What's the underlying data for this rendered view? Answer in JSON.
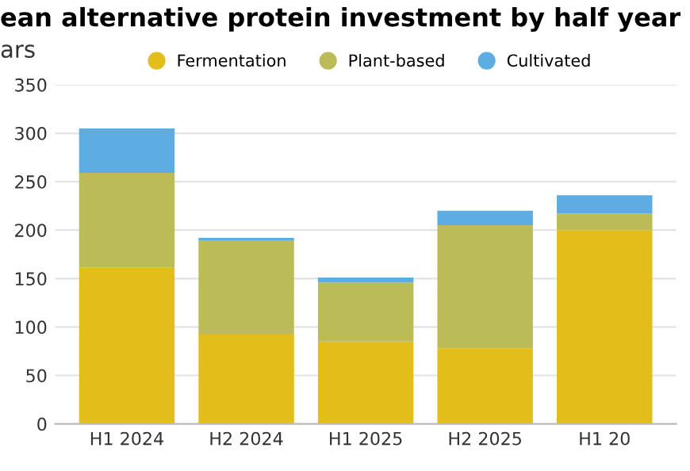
{
  "chart_data": {
    "type": "bar",
    "title": "ean alternative protein investment by half year",
    "subtitle": "ars",
    "categories": [
      "H1 2024",
      "H2 2024",
      "H1 2025",
      "H2 2025",
      "H1 20"
    ],
    "stacked": true,
    "series": [
      {
        "name": "Fermentation",
        "color": "#e3bd1a",
        "values": [
          161,
          93,
          85,
          78,
          200
        ]
      },
      {
        "name": "Plant-based",
        "color": "#bbbc58",
        "values": [
          98,
          96,
          61,
          127,
          17
        ]
      },
      {
        "name": "Cultivated",
        "color": "#5dade2",
        "values": [
          46,
          3,
          5,
          15,
          19
        ]
      }
    ],
    "ylim": [
      0,
      350
    ],
    "yticks": [
      0,
      50,
      100,
      150,
      200,
      250,
      300,
      350
    ],
    "grid": "y",
    "legend": "top"
  }
}
